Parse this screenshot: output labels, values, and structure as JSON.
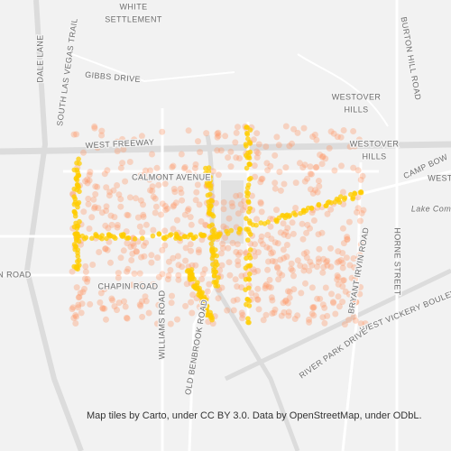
{
  "labels": [
    "WHITE",
    "SETTLEMENT",
    "DALE LANE",
    "SOUTH LAS VEGAS TRAIL",
    "GIBBS DRIVE",
    "BURTON HILL ROAD",
    "WESTOVER",
    "HILLS",
    "WESTOVER",
    "HILLS",
    "WEST FREEWAY",
    "CALMONT AVENUE",
    "CAMP BOW",
    "WEST",
    "Lake Com",
    "HORNE STREET",
    "BRYANT IRVIN ROAD",
    "WEST VICKERY BOULEVARD",
    "RIVER PARK DRIVE",
    "CHAPIN ROAD",
    "N ROAD",
    "WILLIAMS ROAD",
    "OLD BENBROOK ROAD"
  ],
  "attribution": "Map tiles by Carto, under CC BY 3.0. Data by OpenStreetMap, under ODbL."
}
